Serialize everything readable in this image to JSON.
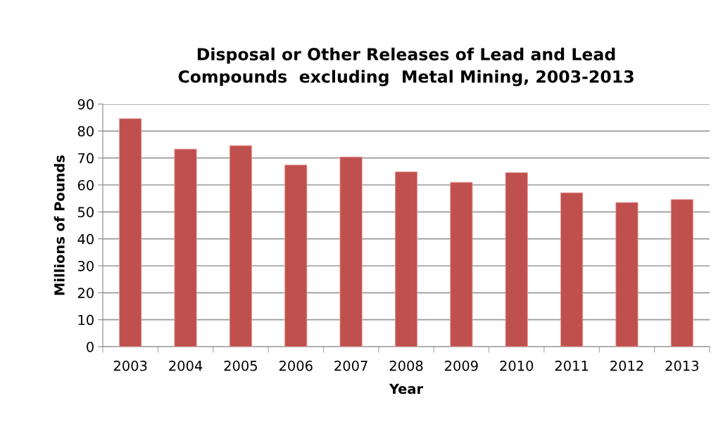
{
  "chart_data": {
    "type": "bar",
    "title": "Disposal or Other Releases of Lead and Lead\nCompounds  excluding  Metal Mining, 2003-2013",
    "xlabel": "Year",
    "ylabel": "Millions of Pounds",
    "categories": [
      "2003",
      "2004",
      "2005",
      "2006",
      "2007",
      "2008",
      "2009",
      "2010",
      "2011",
      "2012",
      "2013"
    ],
    "values": [
      84.6,
      73.3,
      74.6,
      67.4,
      70.4,
      64.9,
      61.0,
      64.6,
      57.1,
      53.5,
      54.6
    ],
    "color": "#c0504d",
    "ylim": [
      0,
      90
    ],
    "yticks": [
      0,
      10,
      20,
      30,
      40,
      50,
      60,
      70,
      80,
      90
    ],
    "grid": "y"
  }
}
